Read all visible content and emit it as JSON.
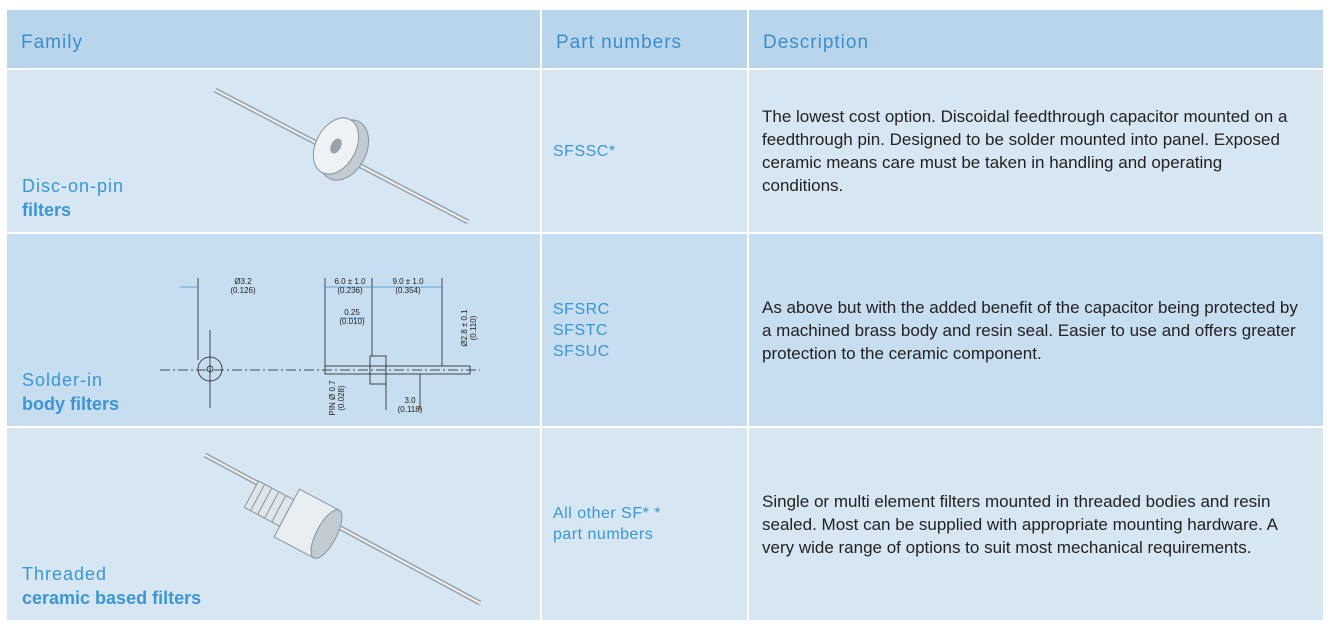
{
  "header": {
    "family": "Family",
    "part_numbers": "Part numbers",
    "description": "Description"
  },
  "rows": [
    {
      "family_line1": "Disc-on-pin",
      "family_line2": "filters",
      "part_numbers": [
        "SFSSC*"
      ],
      "description": "The lowest cost option. Discoidal feedthrough capacitor mounted on a feedthrough pin. Designed to be solder mounted into panel. Exposed ceramic means care must be taken in handling and operating conditions."
    },
    {
      "family_line1": "Solder-in",
      "family_line2": "body filters",
      "part_numbers": [
        "SFSRC",
        "SFSTC",
        "SFSUC"
      ],
      "description": "As above but with the added benefit of the capacitor being protected by a machined brass body and resin seal. Easier to use and offers greater protection to the ceramic component."
    },
    {
      "family_line1": "Threaded",
      "family_line2": "ceramic based filters",
      "part_numbers": [
        "All other SF* *",
        "part numbers"
      ],
      "description": "Single or multi element filters mounted in threaded bodies and resin sealed. Most can be supplied with appropriate mounting hardware. A very wide range of options to suit most mechanical requirements."
    }
  ],
  "drawing": {
    "labels": [
      "Ø3.2",
      "(0.126)",
      "6.0 ± 1.0",
      "(0.236)",
      "9.0 ± 1.0",
      "(0.354)",
      "0.25",
      "(0.010)",
      "Ø2.8 ± 0.1",
      "(0.110)",
      "PIN Ø 0.7",
      "(0.028)",
      "3.0",
      "(0.118)"
    ]
  }
}
